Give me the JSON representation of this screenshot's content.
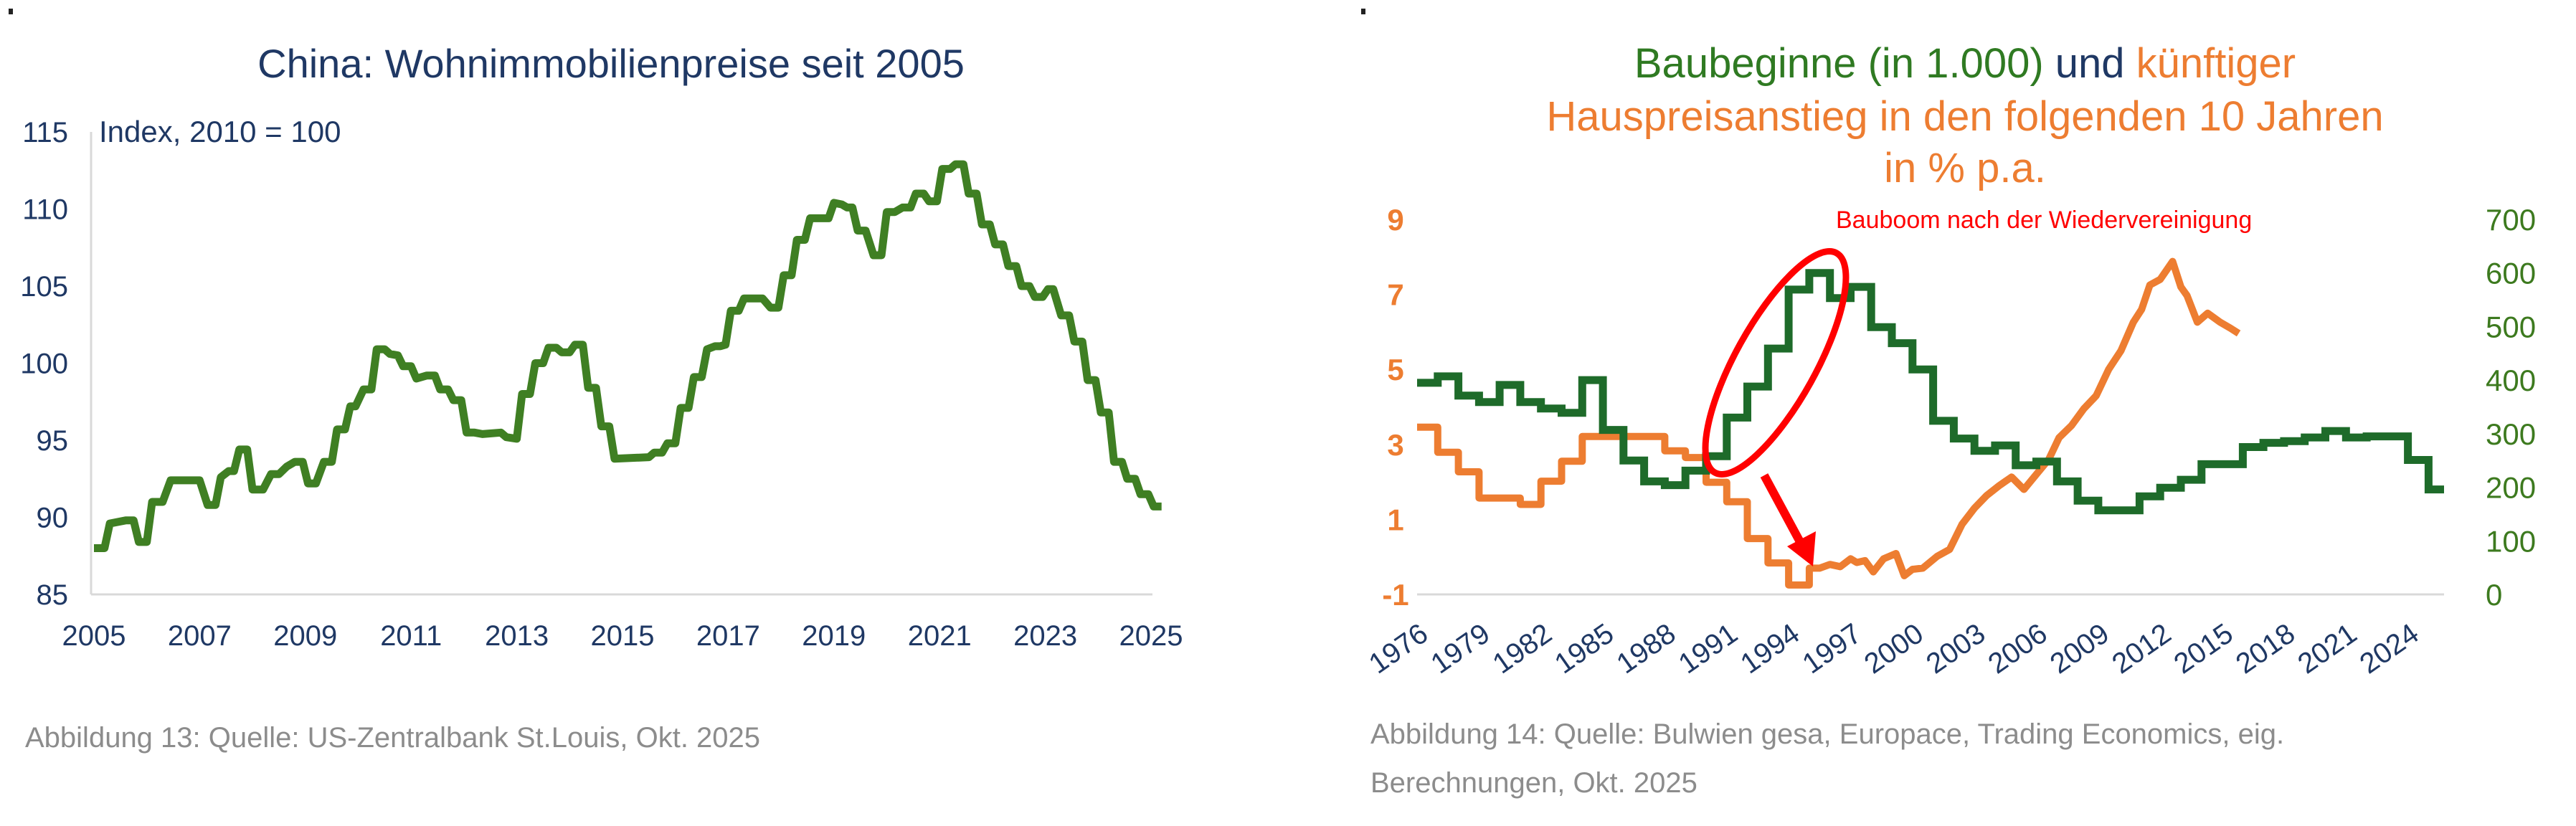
{
  "chart_data": [
    {
      "type": "line",
      "title": "China: Wohnimmobilienpreise seit 2005",
      "ylabel_note": "Index, 2010 = 100",
      "xlabel": "",
      "ylim": [
        85,
        115
      ],
      "xlim": [
        2005,
        2025
      ],
      "yticks": [
        "85",
        "90",
        "95",
        "100",
        "105",
        "110",
        "115"
      ],
      "xticks": [
        "2005",
        "2007",
        "2009",
        "2011",
        "2013",
        "2015",
        "2017",
        "2019",
        "2021",
        "2023",
        "2025"
      ],
      "grid": false,
      "color": "#3f7f23",
      "series": [
        {
          "name": "Wohnimmobilienpreise China",
          "x": [
            2005.0,
            2005.2,
            2005.3,
            2005.6,
            2005.75,
            2005.85,
            2006.0,
            2006.1,
            2006.3,
            2006.45,
            2007.0,
            2007.15,
            2007.3,
            2007.4,
            2007.55,
            2007.65,
            2007.75,
            2007.9,
            2008.0,
            2008.2,
            2008.35,
            2008.5,
            2008.65,
            2008.8,
            2008.95,
            2009.05,
            2009.2,
            2009.35,
            2009.5,
            2009.6,
            2009.75,
            2009.85,
            2009.95,
            2010.1,
            2010.25,
            2010.35,
            2010.5,
            2010.6,
            2010.75,
            2010.85,
            2011.0,
            2011.1,
            2011.3,
            2011.45,
            2011.55,
            2011.7,
            2011.8,
            2011.95,
            2012.05,
            2012.2,
            2012.35,
            2012.7,
            2012.8,
            2013.0,
            2013.1,
            2013.25,
            2013.35,
            2013.5,
            2013.6,
            2013.75,
            2013.85,
            2014.0,
            2014.1,
            2014.25,
            2014.35,
            2014.5,
            2014.6,
            2014.75,
            2014.85,
            2015.5,
            2015.6,
            2015.75,
            2015.85,
            2016.0,
            2016.1,
            2016.25,
            2016.35,
            2016.5,
            2016.6,
            2016.75,
            2016.85,
            2016.95,
            2017.05,
            2017.2,
            2017.3,
            2017.65,
            2017.8,
            2017.95,
            2018.05,
            2018.2,
            2018.3,
            2018.45,
            2018.55,
            2018.9,
            2019.0,
            2019.15,
            2019.25,
            2019.35,
            2019.45,
            2019.6,
            2019.75,
            2019.9,
            2020.0,
            2020.15,
            2020.3,
            2020.45,
            2020.55,
            2020.7,
            2020.8,
            2020.95,
            2021.05,
            2021.2,
            2021.3,
            2021.45,
            2021.55,
            2021.7,
            2021.8,
            2021.95,
            2022.05,
            2022.2,
            2022.3,
            2022.45,
            2022.55,
            2022.7,
            2022.8,
            2022.95,
            2023.05,
            2023.15,
            2023.3,
            2023.45,
            2023.55,
            2023.7,
            2023.8,
            2023.95,
            2024.05,
            2024.2,
            2024.3,
            2024.45,
            2024.55,
            2024.7,
            2024.8,
            2024.95,
            2025.05,
            2025.2
          ],
          "values": [
            88.0,
            88.0,
            89.6,
            89.8,
            89.8,
            88.4,
            88.4,
            91.0,
            91.0,
            92.4,
            92.4,
            90.8,
            90.8,
            92.6,
            93.0,
            93.0,
            94.4,
            94.4,
            91.8,
            91.8,
            92.8,
            92.8,
            93.3,
            93.6,
            93.6,
            92.2,
            92.2,
            93.6,
            93.6,
            95.7,
            95.7,
            97.2,
            97.2,
            98.3,
            98.3,
            100.9,
            100.9,
            100.6,
            100.5,
            99.8,
            99.8,
            99.0,
            99.2,
            99.2,
            98.3,
            98.3,
            97.6,
            97.6,
            95.5,
            95.5,
            95.4,
            95.5,
            95.2,
            95.1,
            98.0,
            98.0,
            100.0,
            100.0,
            101.0,
            101.0,
            100.7,
            100.7,
            101.2,
            101.2,
            98.4,
            98.4,
            95.9,
            95.9,
            93.8,
            93.9,
            94.2,
            94.2,
            94.8,
            94.8,
            97.1,
            97.1,
            99.1,
            99.1,
            100.9,
            101.1,
            101.1,
            101.2,
            103.4,
            103.4,
            104.2,
            104.2,
            103.6,
            103.6,
            105.7,
            105.7,
            108.0,
            108.0,
            109.4,
            109.4,
            110.4,
            110.3,
            110.1,
            110.1,
            108.6,
            108.6,
            107.0,
            107.0,
            109.8,
            109.8,
            110.1,
            110.1,
            111.0,
            111.0,
            110.5,
            110.5,
            112.6,
            112.6,
            112.9,
            112.9,
            111.0,
            111.0,
            109.0,
            109.0,
            107.7,
            107.7,
            106.3,
            106.3,
            105.0,
            105.0,
            104.3,
            104.3,
            104.8,
            104.8,
            103.1,
            103.1,
            101.4,
            101.4,
            98.9,
            98.9,
            96.8,
            96.8,
            93.6,
            93.6,
            92.5,
            92.5,
            91.5,
            91.5,
            90.7,
            90.7
          ]
        }
      ]
    },
    {
      "type": "line",
      "title_parts": [
        {
          "text": "Baubeginne (in 1.000)",
          "color": "#2f7a22"
        },
        {
          "text": " und ",
          "color": "#1f3864"
        },
        {
          "text": "künftiger",
          "color": "#ed7d31"
        }
      ],
      "title_line2": "Hauspreisanstieg in den folgenden 10 Jahren",
      "title_line3": "in % p.a.",
      "annotation": "Bauboom nach der Wiedervereinigung",
      "annotation_color": "#ff0000",
      "xlim": [
        1976,
        2025.75
      ],
      "xticks": [
        "1976",
        "1979",
        "1982",
        "1985",
        "1988",
        "1991",
        "1994",
        "1997",
        "2000",
        "2003",
        "2006",
        "2009",
        "2012",
        "2015",
        "2018",
        "2021",
        "2024"
      ],
      "y_left": {
        "ylim": [
          -1,
          9
        ],
        "ticks": [
          "-1",
          "1",
          "3",
          "5",
          "7",
          "9"
        ],
        "color": "#ed7d31"
      },
      "y_right": {
        "ylim": [
          0,
          700
        ],
        "ticks": [
          "0",
          "100",
          "200",
          "300",
          "400",
          "500",
          "600",
          "700"
        ],
        "color": "#3d7a1f"
      },
      "grid": false,
      "series": [
        {
          "name": "Baubeginne (in 1.000)",
          "axis": "right",
          "color": "#1e6b2a",
          "step": true,
          "x": [
            1976,
            1977,
            1978,
            1979,
            1980,
            1981,
            1982,
            1983,
            1984,
            1985,
            1986,
            1987,
            1988,
            1989,
            1990,
            1991,
            1992,
            1993,
            1994,
            1995,
            1996,
            1997,
            1998,
            1999,
            2000,
            2001,
            2002,
            2003,
            2004,
            2005,
            2006,
            2007,
            2008,
            2009,
            2010,
            2011,
            2012,
            2013,
            2014,
            2015,
            2016,
            2017,
            2018,
            2019,
            2020,
            2021,
            2022,
            2023,
            2024,
            2025
          ],
          "values": [
            395,
            407,
            371,
            359,
            391,
            359,
            347,
            339,
            400,
            307,
            250,
            211,
            204,
            231,
            258,
            330,
            388,
            459,
            569,
            600,
            553,
            574,
            499,
            469,
            420,
            324,
            291,
            268,
            278,
            241,
            248,
            211,
            175,
            157,
            157,
            183,
            199,
            214,
            243,
            243,
            275,
            283,
            286,
            293,
            305,
            293,
            295,
            295,
            251,
            196
          ]
        },
        {
          "name": "Künftiger Hauspreisanstieg in den folgenden 10 Jahren (% p.a.)",
          "axis": "left",
          "color": "#ed7d31",
          "x": [
            1976,
            1977,
            1977,
            1978,
            1978,
            1979,
            1979,
            1981,
            1981,
            1982,
            1982,
            1983,
            1983,
            1984,
            1984,
            1988,
            1988,
            1989,
            1989,
            1990,
            1990,
            1991,
            1991,
            1992,
            1992,
            1993,
            1993,
            1994,
            1994,
            1995,
            1995,
            1995.5,
            1996.0,
            1996.5,
            1997.0,
            1997.3,
            1997.7,
            1998.1,
            1998.6,
            1999.2,
            1999.6,
            2000.0,
            2000.5,
            2001.2,
            2001.8,
            2002.4,
            2003.0,
            2003.6,
            2004.2,
            2004.8,
            2005.4,
            2006.0,
            2006.6,
            2007.1,
            2007.7,
            2008.3,
            2008.9,
            2009.5,
            2010.1,
            2010.7,
            2011.1,
            2011.5,
            2012.0,
            2012.6,
            2013.0,
            2013.3,
            2013.8,
            2014.3,
            2014.9,
            2015.4,
            2015.8
          ],
          "values": [
            3.46,
            3.46,
            2.79,
            2.79,
            2.27,
            2.27,
            1.57,
            1.57,
            1.4,
            1.4,
            2.02,
            2.02,
            2.55,
            2.55,
            3.21,
            3.21,
            2.83,
            2.83,
            2.65,
            2.65,
            1.99,
            1.99,
            1.47,
            1.47,
            0.49,
            0.49,
            -0.16,
            -0.16,
            -0.75,
            -0.75,
            -0.3,
            -0.3,
            -0.2,
            -0.26,
            -0.05,
            -0.15,
            -0.1,
            -0.4,
            -0.05,
            0.09,
            -0.5,
            -0.33,
            -0.3,
            0.02,
            0.2,
            0.87,
            1.3,
            1.64,
            1.9,
            2.13,
            1.8,
            2.2,
            2.6,
            3.18,
            3.5,
            3.95,
            4.3,
            5.0,
            5.5,
            6.26,
            6.6,
            7.25,
            7.4,
            7.88,
            7.2,
            6.97,
            6.26,
            6.5,
            6.26,
            6.1,
            5.96
          ]
        }
      ]
    }
  ],
  "captions": {
    "left": "Abbildung 13: Quelle: US-Zentralbank St.Louis, Okt. 2025",
    "right_line1": "Abbildung 14: Quelle: Bulwien gesa, Europace, Trading Economics, eig.",
    "right_line2": "Berechnungen, Okt. 2025"
  }
}
